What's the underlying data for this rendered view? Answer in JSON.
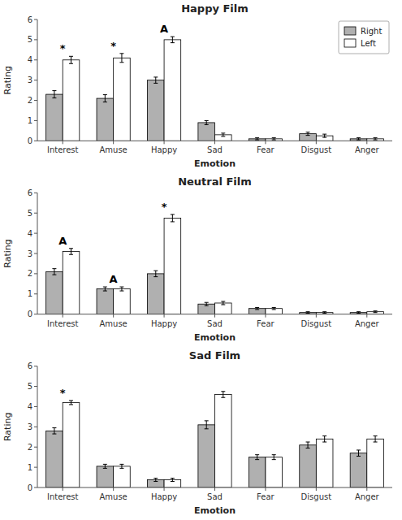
{
  "chart_data": [
    {
      "type": "bar",
      "title": "Happy Film",
      "xlabel": "Emotion",
      "ylabel": "Rating",
      "categories": [
        "Interest",
        "Amuse",
        "Happy",
        "Sad",
        "Fear",
        "Disgust",
        "Anger"
      ],
      "series": [
        {
          "name": "Right",
          "color": "#b0b0b0",
          "values": [
            2.3,
            2.1,
            3.0,
            0.9,
            0.1,
            0.35,
            0.1
          ],
          "errors": [
            0.18,
            0.18,
            0.15,
            0.1,
            0.05,
            0.08,
            0.05
          ]
        },
        {
          "name": "Left",
          "color": "#ffffff",
          "values": [
            4.0,
            4.1,
            5.0,
            0.3,
            0.1,
            0.25,
            0.1
          ],
          "errors": [
            0.18,
            0.22,
            0.15,
            0.08,
            0.05,
            0.08,
            0.05
          ]
        }
      ],
      "annotations": [
        {
          "category": "Interest",
          "text": "*"
        },
        {
          "category": "Amuse",
          "text": "*"
        },
        {
          "category": "Happy",
          "text": "A"
        }
      ],
      "ylim": [
        0,
        6
      ],
      "yticks": [
        0,
        1,
        2,
        3,
        4,
        5,
        6
      ],
      "grid": false,
      "legend": "upper right"
    },
    {
      "type": "bar",
      "title": "Neutral Film",
      "xlabel": "Emotion",
      "ylabel": "Rating",
      "categories": [
        "Interest",
        "Amuse",
        "Happy",
        "Sad",
        "Fear",
        "Disgust",
        "Anger"
      ],
      "series": [
        {
          "color": "#b0b0b0",
          "values": [
            2.1,
            1.25,
            2.0,
            0.5,
            0.28,
            0.08,
            0.08
          ],
          "errors": [
            0.15,
            0.1,
            0.15,
            0.08,
            0.05,
            0.04,
            0.04
          ]
        },
        {
          "color": "#ffffff",
          "values": [
            3.1,
            1.25,
            4.75,
            0.55,
            0.28,
            0.08,
            0.12
          ],
          "errors": [
            0.15,
            0.1,
            0.18,
            0.08,
            0.05,
            0.04,
            0.04
          ]
        }
      ],
      "annotations": [
        {
          "category": "Interest",
          "text": "A"
        },
        {
          "category": "Amuse",
          "text": "A"
        },
        {
          "category": "Happy",
          "text": "*"
        }
      ],
      "ylim": [
        0,
        6
      ],
      "yticks": [
        0,
        1,
        2,
        3,
        4,
        5,
        6
      ],
      "grid": false
    },
    {
      "type": "bar",
      "title": "Sad Film",
      "xlabel": "Emotion",
      "ylabel": "Rating",
      "categories": [
        "Interest",
        "Amuse",
        "Happy",
        "Sad",
        "Fear",
        "Disgust",
        "Anger"
      ],
      "series": [
        {
          "color": "#b0b0b0",
          "values": [
            2.8,
            1.05,
            0.38,
            3.1,
            1.5,
            2.1,
            1.7
          ],
          "errors": [
            0.15,
            0.1,
            0.08,
            0.2,
            0.12,
            0.15,
            0.15
          ]
        },
        {
          "color": "#ffffff",
          "values": [
            4.2,
            1.05,
            0.38,
            4.6,
            1.5,
            2.4,
            2.4
          ],
          "errors": [
            0.1,
            0.1,
            0.08,
            0.15,
            0.12,
            0.15,
            0.15
          ]
        }
      ],
      "annotations": [
        {
          "category": "Interest",
          "text": "*"
        }
      ],
      "ylim": [
        0,
        6
      ],
      "yticks": [
        0,
        1,
        2,
        3,
        4,
        5,
        6
      ],
      "grid": false
    }
  ]
}
